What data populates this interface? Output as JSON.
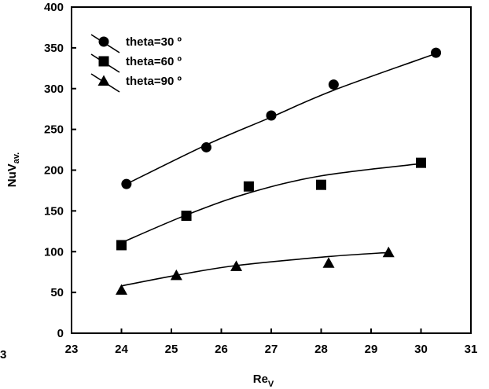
{
  "chart_data": {
    "type": "scatter",
    "xlabel": "Re",
    "xlabel_sub": "V",
    "ylabel": "NuV",
    "ylabel_sub": "av.",
    "xlim": [
      23,
      31
    ],
    "ylim": [
      0,
      400
    ],
    "xticks": [
      "23",
      "24",
      "25",
      "26",
      "27",
      "28",
      "29",
      "30",
      "31"
    ],
    "yticks": [
      "0",
      "50",
      "100",
      "150",
      "200",
      "250",
      "300",
      "350",
      "400"
    ],
    "legend_position": "top-left",
    "grid": false,
    "stray_label": "3",
    "series": [
      {
        "name": "theta=30 º",
        "marker": "circle",
        "x": [
          24.1,
          25.7,
          27.0,
          28.25,
          30.3
        ],
        "y": [
          183,
          228,
          267,
          305,
          344
        ],
        "fit": [
          [
            24.1,
            183
          ],
          [
            25.7,
            231
          ],
          [
            27.0,
            265
          ],
          [
            28.25,
            298
          ],
          [
            30.3,
            343
          ]
        ]
      },
      {
        "name": "theta=60 º",
        "marker": "square",
        "x": [
          24.0,
          25.3,
          26.55,
          28.0,
          30.0
        ],
        "y": [
          108,
          144,
          180,
          182,
          209
        ],
        "fit": [
          [
            24.0,
            111
          ],
          [
            25.3,
            145
          ],
          [
            26.55,
            172
          ],
          [
            28.0,
            193
          ],
          [
            30.0,
            208
          ]
        ]
      },
      {
        "name": "theta=90 º",
        "marker": "triangle",
        "x": [
          24.0,
          25.1,
          26.3,
          28.15,
          29.35
        ],
        "y": [
          53,
          71,
          82,
          86,
          99
        ],
        "fit": [
          [
            24.0,
            58
          ],
          [
            25.1,
            71
          ],
          [
            26.3,
            83
          ],
          [
            28.15,
            94
          ],
          [
            29.35,
            99
          ]
        ]
      }
    ]
  }
}
